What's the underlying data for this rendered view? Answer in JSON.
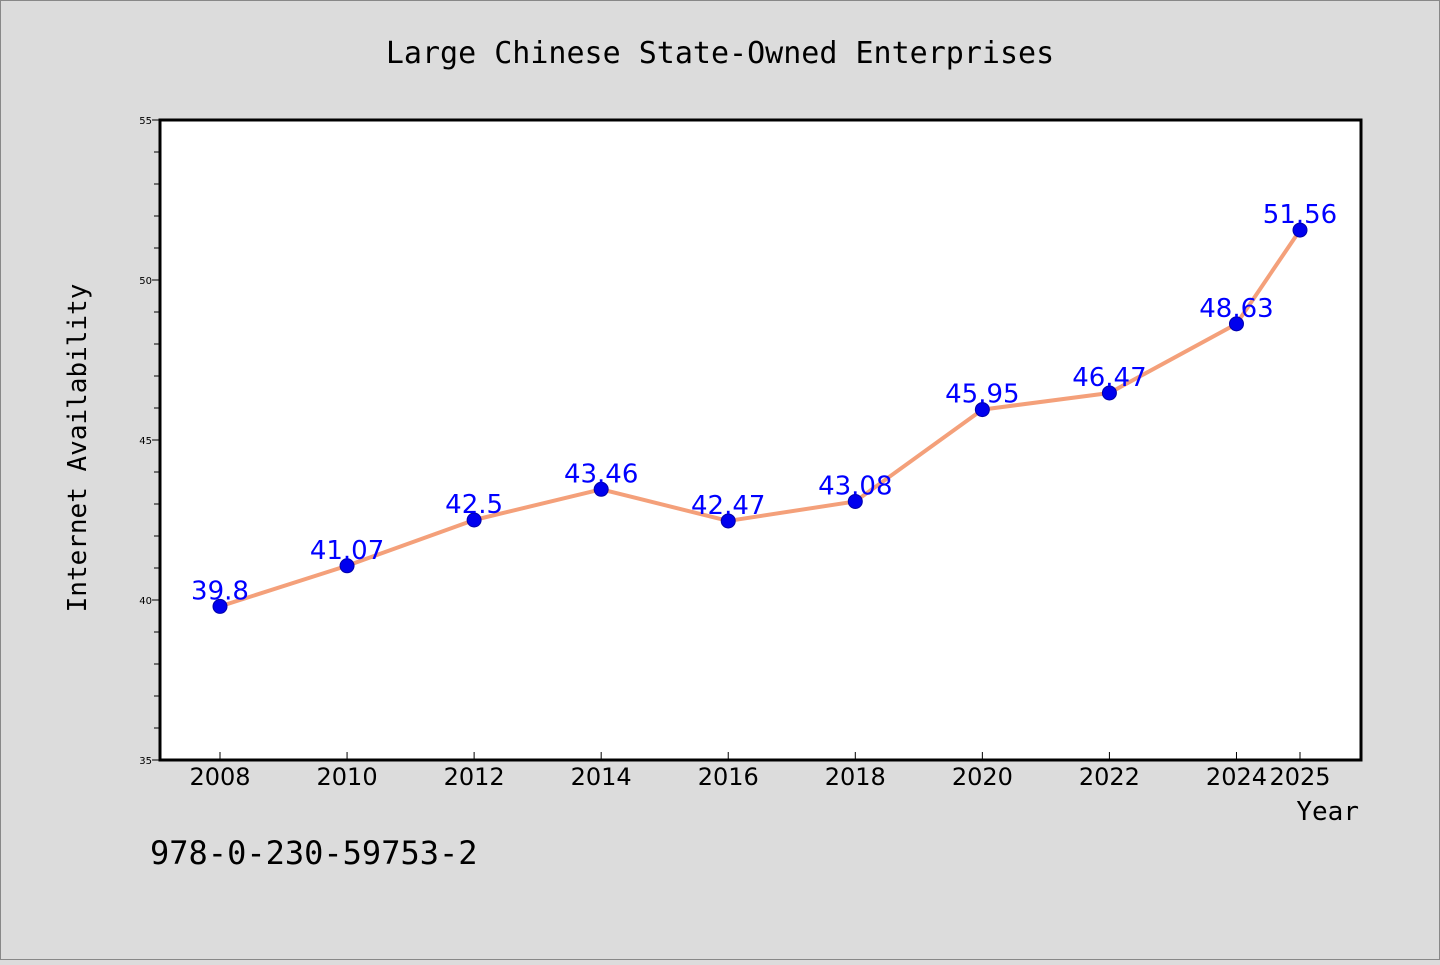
{
  "chart_data": {
    "type": "line",
    "title": "Large Chinese State-Owned Enterprises",
    "xlabel": "Year",
    "ylabel": "Internet Availability",
    "categories": [
      "2008",
      "2010",
      "2012",
      "2014",
      "2016",
      "2018",
      "2020",
      "2022",
      "2024",
      "2025"
    ],
    "series": [
      {
        "values": [
          39.8,
          41.07,
          42.5,
          43.46,
          42.47,
          43.08,
          45.95,
          46.47,
          48.63,
          51.56
        ],
        "labels": [
          "39.8",
          "41.07",
          "42.5",
          "43.46",
          "42.47",
          "43.08",
          "45.95",
          "46.47",
          "48.63",
          "51.56"
        ]
      }
    ],
    "ylim": [
      35,
      55
    ],
    "yticks": [
      "35",
      "40",
      "45",
      "50",
      "55"
    ],
    "grid": false,
    "legend": "none",
    "colors": {
      "line": "#f4a07a",
      "marker": "#0000ee",
      "data_label": "#0000ff",
      "plot_background": "#ffffff",
      "figure_background": "#dcdcdc"
    }
  },
  "annotation": {
    "isbn": "978-0-230-59753-2"
  }
}
